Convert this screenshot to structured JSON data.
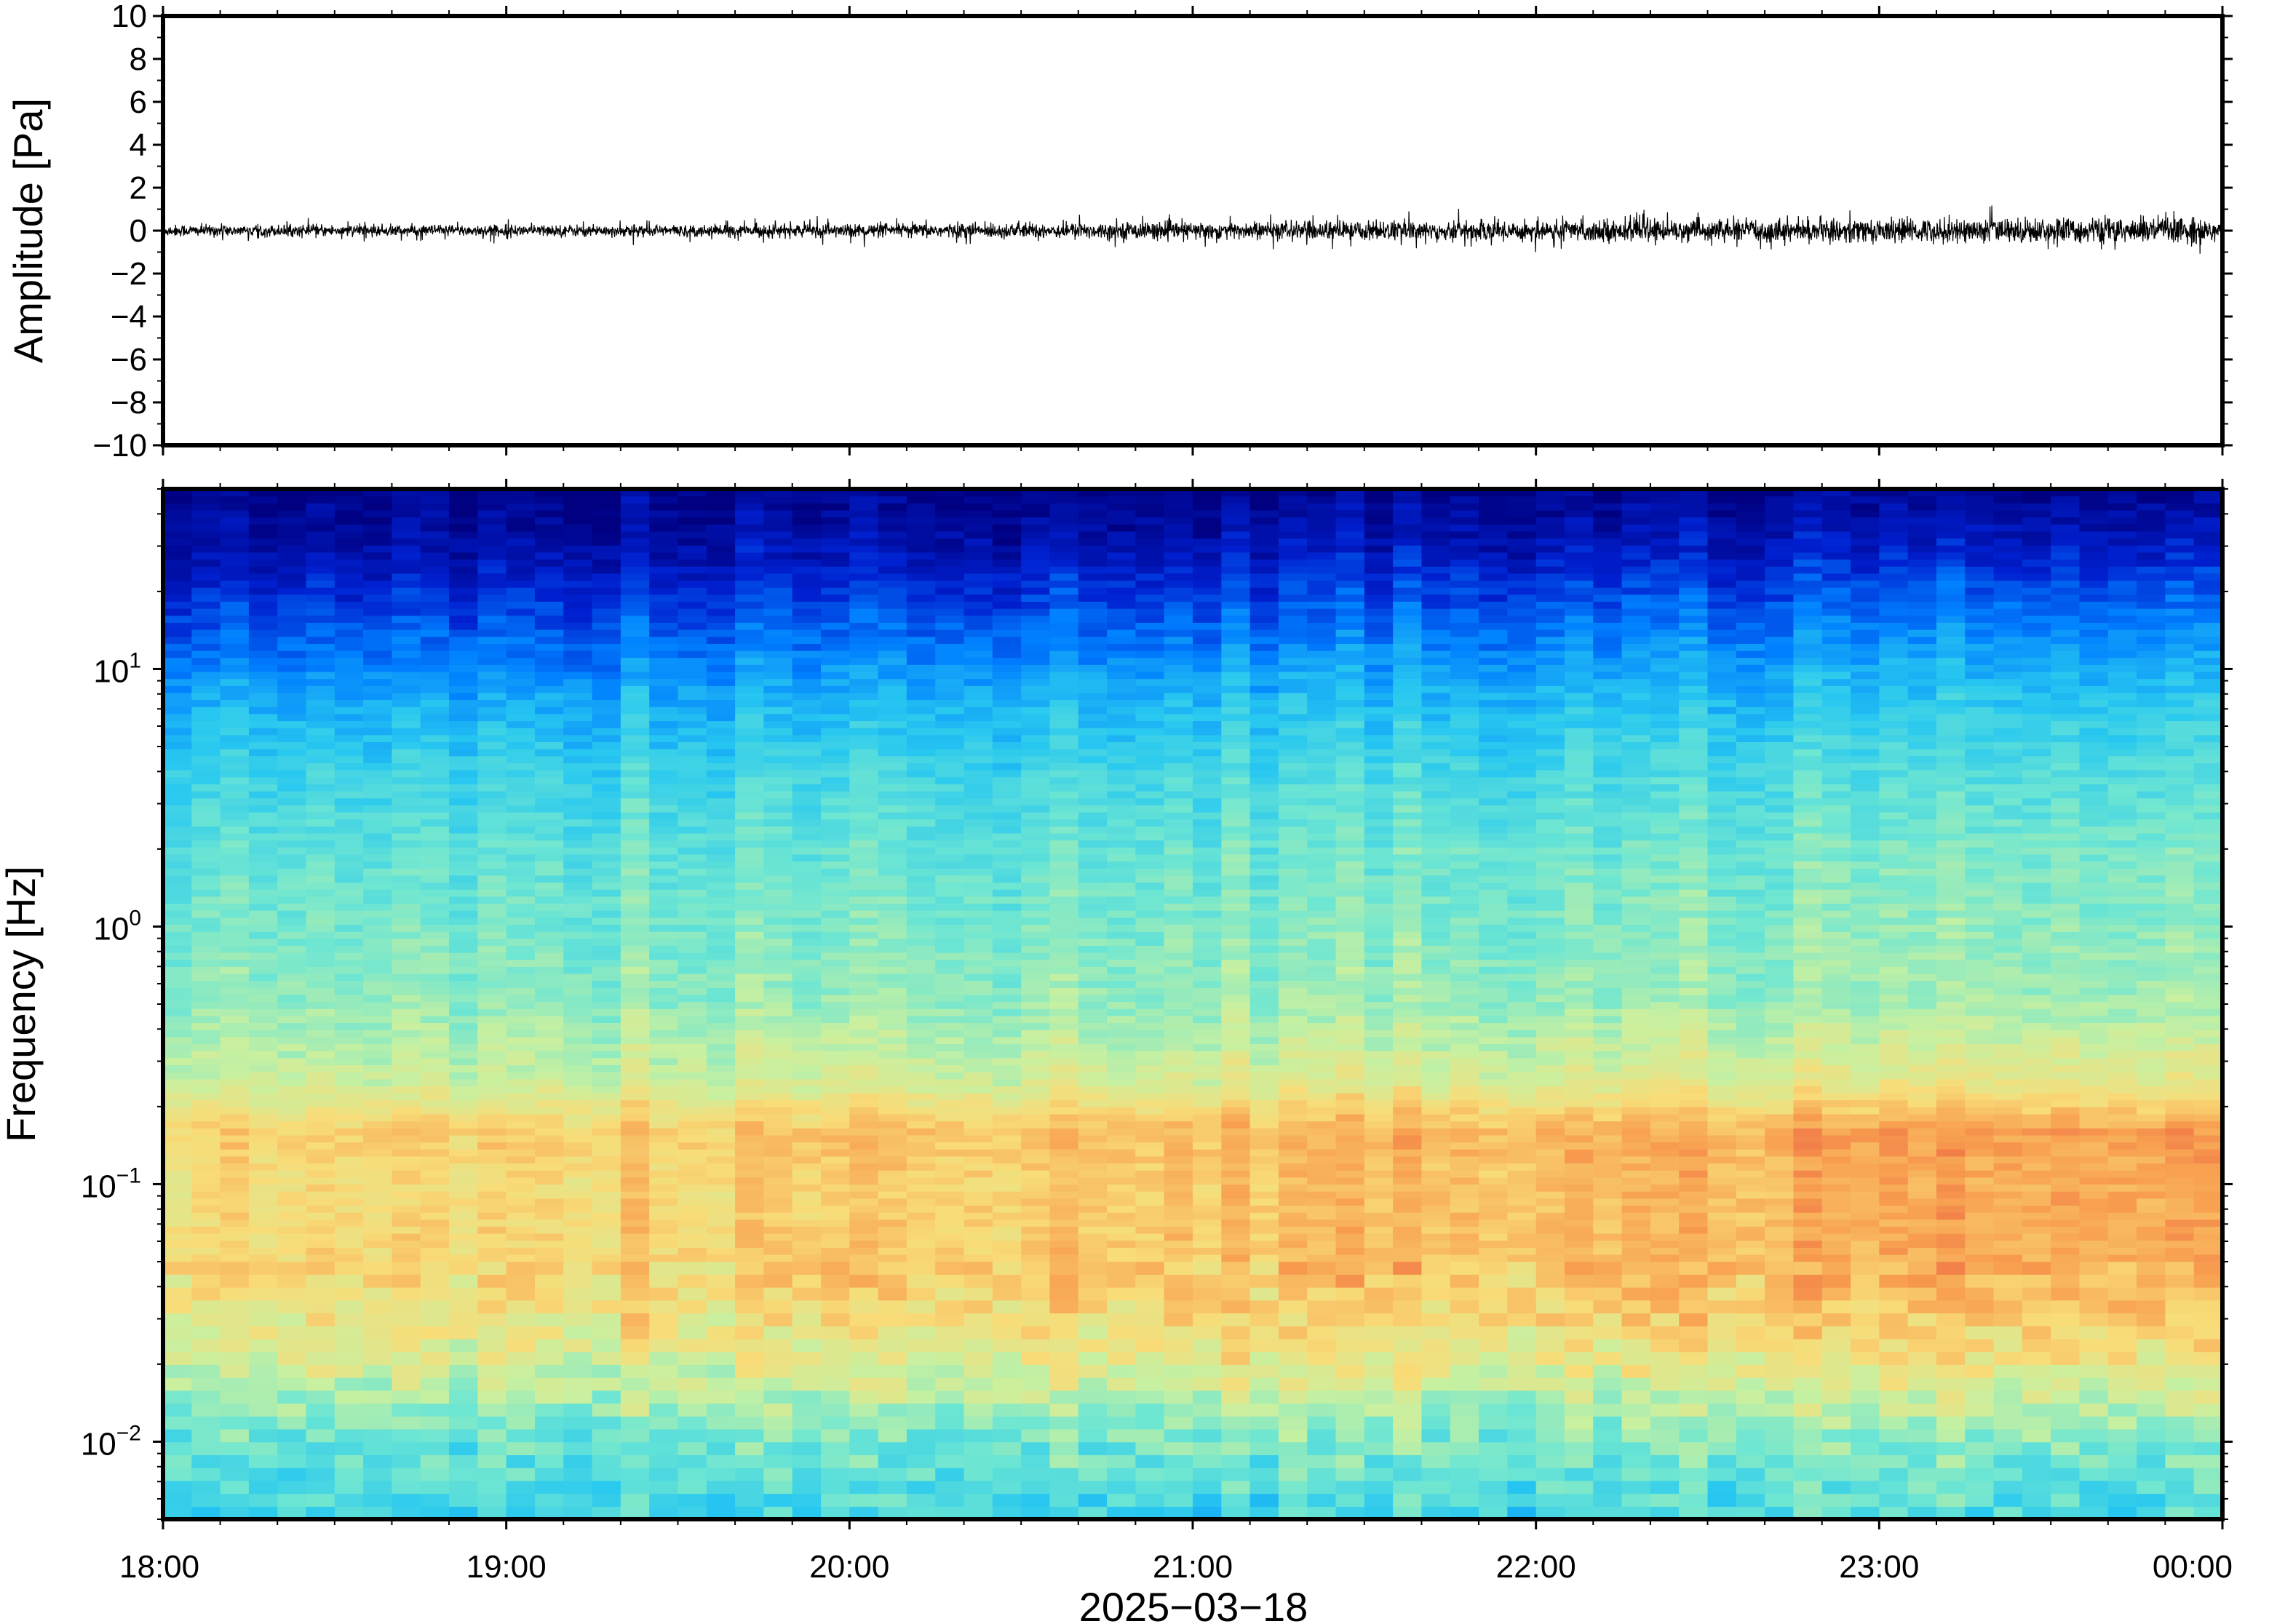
{
  "chart_data": [
    {
      "type": "line",
      "ylabel": "Amplitude [Pa]",
      "ylim": [
        -10,
        10
      ],
      "yticks": [
        "10",
        "8",
        "6",
        "4",
        "2",
        "0",
        "−2",
        "−4",
        "−6",
        "−8",
        "−10"
      ],
      "xlim": [
        "2025-03-18 18:00",
        "2025-03-19 00:00"
      ],
      "series": [
        {
          "color": "#000000",
          "envelope_x_hours": [
            0,
            0.5,
            1,
            1.5,
            2,
            2.5,
            3,
            3.5,
            4,
            4.5,
            5,
            5.5,
            6
          ],
          "typical_amplitude_pa": [
            0.3,
            0.3,
            0.3,
            0.3,
            0.35,
            0.4,
            0.45,
            0.5,
            0.55,
            0.55,
            0.6,
            0.65,
            0.7
          ],
          "peak_amplitude_pa": [
            0.6,
            0.6,
            0.6,
            0.7,
            0.8,
            0.8,
            0.9,
            1.1,
            1.0,
            1.0,
            1.1,
            1.3,
            1.3
          ]
        }
      ]
    },
    {
      "type": "heatmap",
      "xlabel": "2025−03−18",
      "ylabel": "Frequency [Hz]",
      "x_ticks": [
        "18:00",
        "19:00",
        "20:00",
        "21:00",
        "22:00",
        "23:00",
        "00:00"
      ],
      "xlim": [
        "2025-03-18 18:00",
        "2025-03-19 00:00"
      ],
      "y_scale": "log",
      "ylim": [
        0.005,
        50
      ],
      "y_ticks": [
        {
          "base": "10",
          "exp": "1"
        },
        {
          "base": "10",
          "exp": "0"
        },
        {
          "base": "10",
          "exp": "−1"
        },
        {
          "base": "10",
          "exp": "−2"
        }
      ],
      "colormap": [
        "#000080",
        "#0020d0",
        "#0080ff",
        "#28c8f0",
        "#6ee6d2",
        "#c8f0a0",
        "#f8dc78",
        "#f8a050",
        "#e85040"
      ],
      "band_profile": {
        "log10_frequency": [
          -2.3,
          -2.0,
          -1.7,
          -1.5,
          -1.3,
          -1.0,
          -0.8,
          -0.6,
          -0.3,
          0.0,
          0.3,
          0.6,
          0.9,
          1.1,
          1.3,
          1.5,
          1.7
        ],
        "relative_level_start": [
          0.42,
          0.5,
          0.66,
          0.72,
          0.76,
          0.74,
          0.78,
          0.64,
          0.56,
          0.52,
          0.48,
          0.42,
          0.32,
          0.22,
          0.14,
          0.06,
          0.02
        ],
        "relative_level_end": [
          0.44,
          0.54,
          0.72,
          0.8,
          0.86,
          0.86,
          0.88,
          0.7,
          0.58,
          0.55,
          0.52,
          0.46,
          0.38,
          0.3,
          0.2,
          0.1,
          0.03
        ]
      }
    }
  ]
}
